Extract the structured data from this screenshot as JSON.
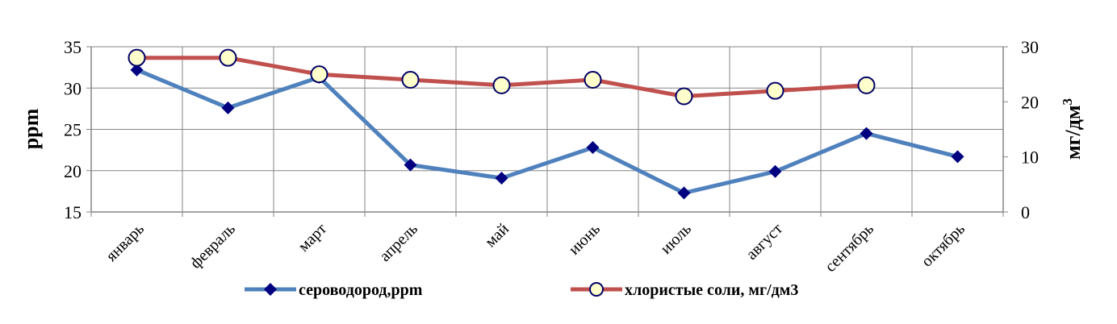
{
  "chart_data": {
    "type": "line",
    "categories": [
      "январь",
      "февраль",
      "март",
      "апрель",
      "май",
      "июнь",
      "июль",
      "август",
      "сентябрь",
      "октябрь"
    ],
    "series": [
      {
        "name": "сероводород,ppm",
        "axis": "left",
        "color": "#4F81BD",
        "marker": "diamond",
        "marker_color": "#000080",
        "values": [
          32.2,
          27.6,
          31.3,
          20.7,
          19.1,
          22.8,
          17.3,
          19.9,
          24.5,
          21.7
        ]
      },
      {
        "name": "хлористые соли, мг/дм3",
        "axis": "right",
        "color": "#C0504D",
        "marker": "circle",
        "marker_color": "#FFFFCC",
        "values": [
          28,
          28,
          25,
          24,
          23,
          24,
          21,
          22,
          23,
          null
        ]
      }
    ],
    "ylabel_left": "ppm",
    "ylabel_right": "мг/дм",
    "ylabel_right_superscript": "3",
    "y_left": {
      "min": 15,
      "max": 35,
      "ticks": [
        "15",
        "20",
        "25",
        "30",
        "35"
      ]
    },
    "y_right": {
      "min": 0,
      "max": 30,
      "ticks": [
        "0",
        "10",
        "20",
        "30"
      ]
    },
    "grid": true,
    "legend_position": "bottom"
  }
}
